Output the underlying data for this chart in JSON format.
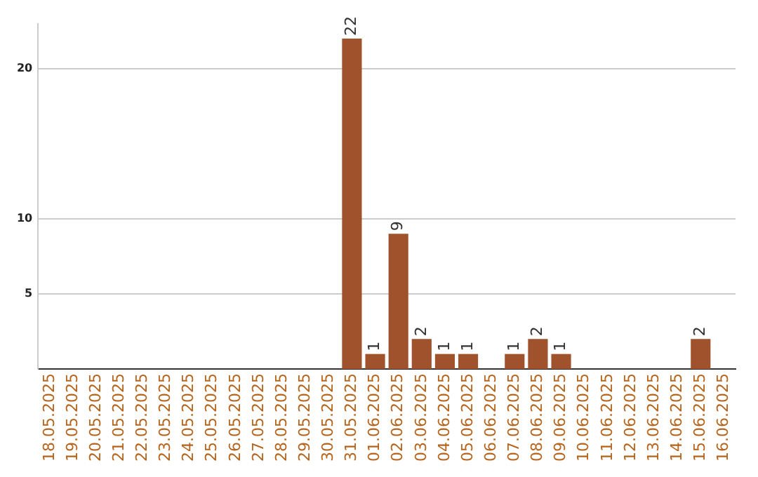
{
  "chart_data": {
    "type": "bar",
    "categories": [
      "18.05.2025",
      "19.05.2025",
      "20.05.2025",
      "21.05.2025",
      "22.05.2025",
      "23.05.2025",
      "24.05.2025",
      "25.05.2025",
      "26.05.2025",
      "27.05.2025",
      "28.05.2025",
      "29.05.2025",
      "30.05.2025",
      "31.05.2025",
      "01.06.2025",
      "02.06.2025",
      "03.06.2025",
      "04.06.2025",
      "05.06.2025",
      "06.06.2025",
      "07.06.2025",
      "08.06.2025",
      "09.06.2025",
      "10.06.2025",
      "11.06.2025",
      "12.06.2025",
      "13.06.2025",
      "14.06.2025",
      "15.06.2025",
      "16.06.2025"
    ],
    "values": [
      0,
      0,
      0,
      0,
      0,
      0,
      0,
      0,
      0,
      0,
      0,
      0,
      0,
      22,
      1,
      9,
      2,
      1,
      1,
      0,
      1,
      2,
      1,
      0,
      0,
      0,
      0,
      0,
      2,
      0
    ],
    "value_labels": [
      null,
      null,
      null,
      null,
      null,
      null,
      null,
      null,
      null,
      null,
      null,
      null,
      null,
      "22",
      "1",
      "9",
      "2",
      "1",
      "1",
      null,
      "1",
      "2",
      "1",
      null,
      null,
      null,
      null,
      null,
      "2",
      null
    ],
    "color": "#a0522d",
    "ylim": [
      0,
      23
    ],
    "yticks": [
      5,
      10,
      20
    ],
    "grid": "y"
  }
}
